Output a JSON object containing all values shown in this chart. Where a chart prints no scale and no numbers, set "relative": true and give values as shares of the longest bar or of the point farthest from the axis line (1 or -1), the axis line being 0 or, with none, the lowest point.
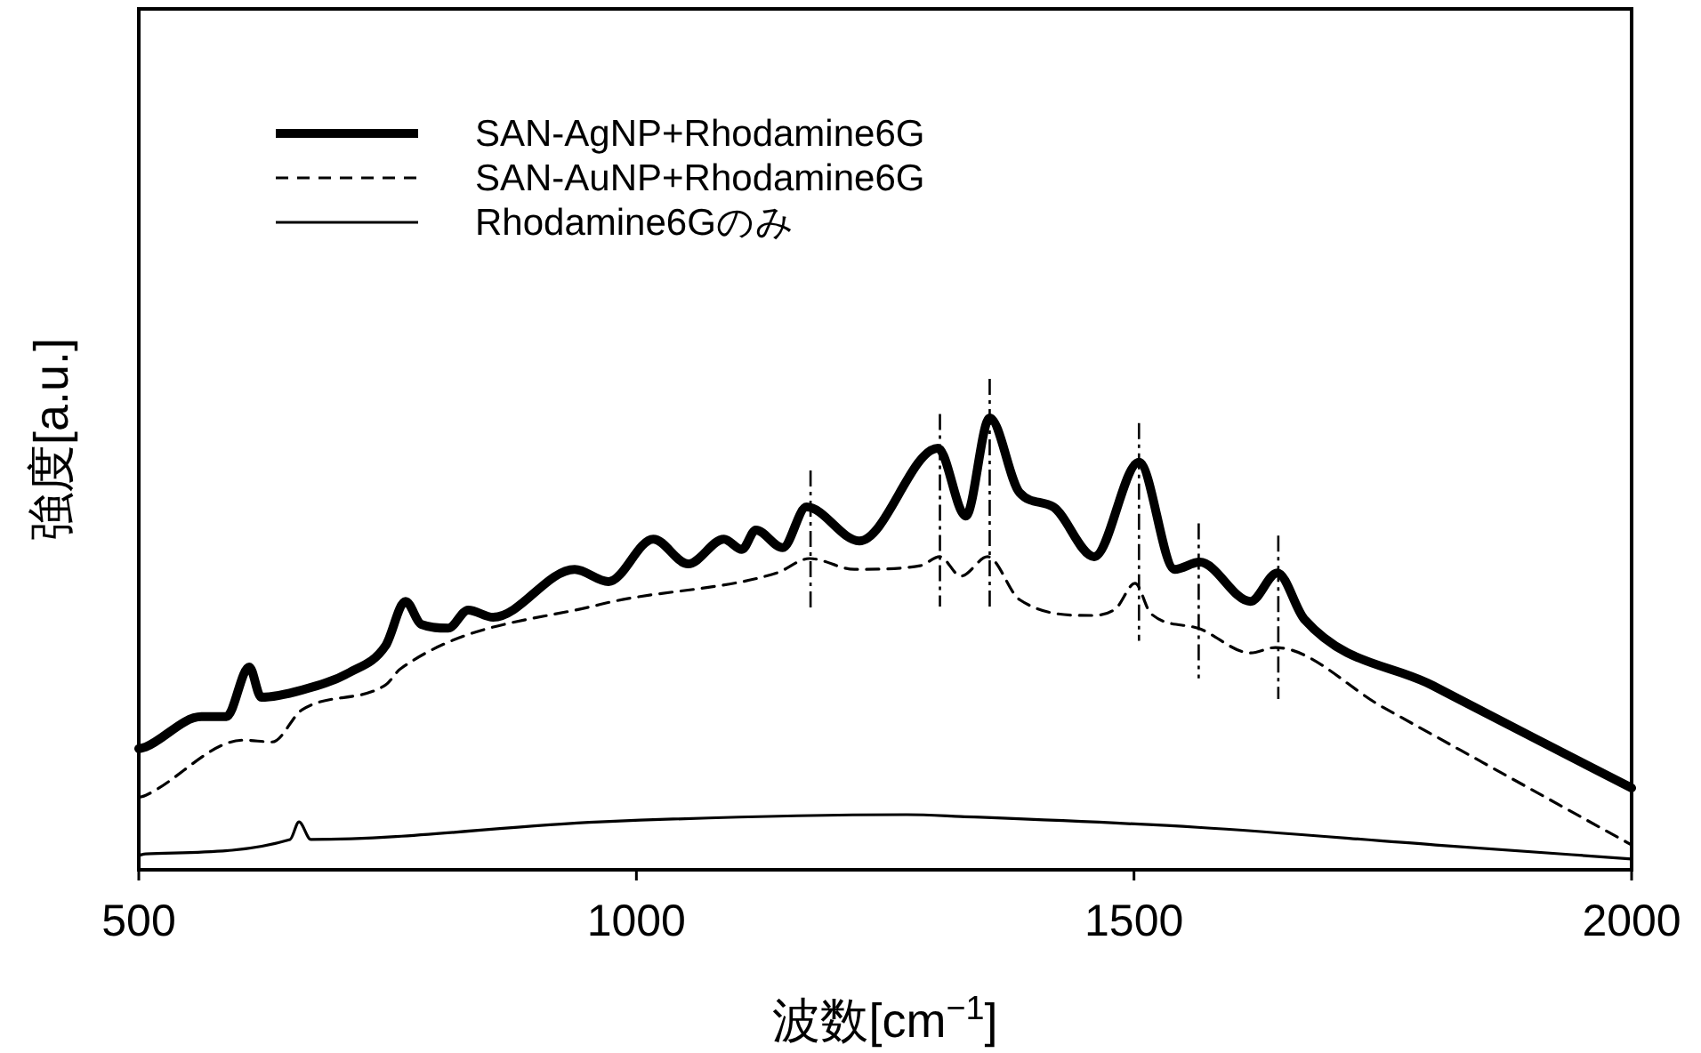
{
  "chart_data": {
    "type": "line",
    "relative": true,
    "xlabel": "波数[cm$^{−1}$]",
    "ylabel": "強度[a.u.]",
    "xlim": [
      500,
      2000
    ],
    "xticks": [
      500,
      1000,
      1500,
      2000
    ],
    "legend": "top left",
    "grid": false,
    "series": [
      {
        "name": "SAN-AgNP+Rhodamine6G",
        "color": "#000000",
        "line_style": "solid",
        "x": [
          500,
          507,
          563,
          588,
          611,
          623,
          664,
          712,
          748,
          768,
          784,
          811,
          831,
          856,
          938,
          972,
          1017,
          1052,
          1088,
          1106,
          1120,
          1147,
          1171,
          1224,
          1303,
          1331,
          1355,
          1385,
          1419,
          1460,
          1505,
          1541,
          1566,
          1617,
          1644,
          1671,
          1800,
          1900,
          2000
        ],
        "values": [
          0.268,
          0.272,
          0.339,
          0.339,
          0.449,
          0.382,
          0.398,
          0.437,
          0.496,
          0.594,
          0.543,
          0.535,
          0.575,
          0.559,
          0.665,
          0.638,
          0.732,
          0.677,
          0.732,
          0.709,
          0.752,
          0.713,
          0.803,
          0.728,
          0.933,
          0.783,
          1.0,
          0.835,
          0.803,
          0.693,
          0.902,
          0.665,
          0.681,
          0.594,
          0.657,
          0.555,
          0.408,
          0.294,
          0.181
        ]
      },
      {
        "name": "SAN-AuNP+Rhodamine6G",
        "color": "#000000",
        "line_style": "dashed",
        "x": [
          500,
          507,
          605,
          634,
          664,
          748,
          763,
          963,
          1141,
          1174,
          1219,
          1285,
          1305,
          1326,
          1353,
          1385,
          1457,
          1482,
          1501,
          1517,
          1564,
          1617,
          1642,
          1750,
          1850,
          1950,
          2000
        ],
        "values": [
          0.16,
          0.165,
          0.287,
          0.283,
          0.354,
          0.409,
          0.445,
          0.587,
          0.657,
          0.689,
          0.665,
          0.673,
          0.693,
          0.65,
          0.693,
          0.598,
          0.563,
          0.579,
          0.634,
          0.567,
          0.535,
          0.48,
          0.492,
          0.36,
          0.238,
          0.116,
          0.055
        ]
      },
      {
        "name": "Rhodamine6Gのみ",
        "color": "#000000",
        "line_style": "solid",
        "x": [
          500,
          507,
          652,
          661,
          673,
          963,
          1272,
          1326,
          1564,
          1803,
          2000
        ],
        "values": [
          0.032,
          0.035,
          0.067,
          0.106,
          0.067,
          0.106,
          0.122,
          0.118,
          0.094,
          0.055,
          0.024
        ]
      }
    ],
    "ref_lines": [
      {
        "axis": "x",
        "value": 1175,
        "line_style": "dashed",
        "color": "#000000"
      },
      {
        "axis": "x",
        "value": 1305,
        "line_style": "dashed",
        "color": "#000000"
      },
      {
        "axis": "x",
        "value": 1355,
        "line_style": "dashed",
        "color": "#000000"
      },
      {
        "axis": "x",
        "value": 1505,
        "line_style": "dashed",
        "color": "#000000"
      },
      {
        "axis": "x",
        "value": 1565,
        "line_style": "dashed",
        "color": "#000000"
      },
      {
        "axis": "x",
        "value": 1645,
        "line_style": "dashed",
        "color": "#000000"
      }
    ]
  }
}
